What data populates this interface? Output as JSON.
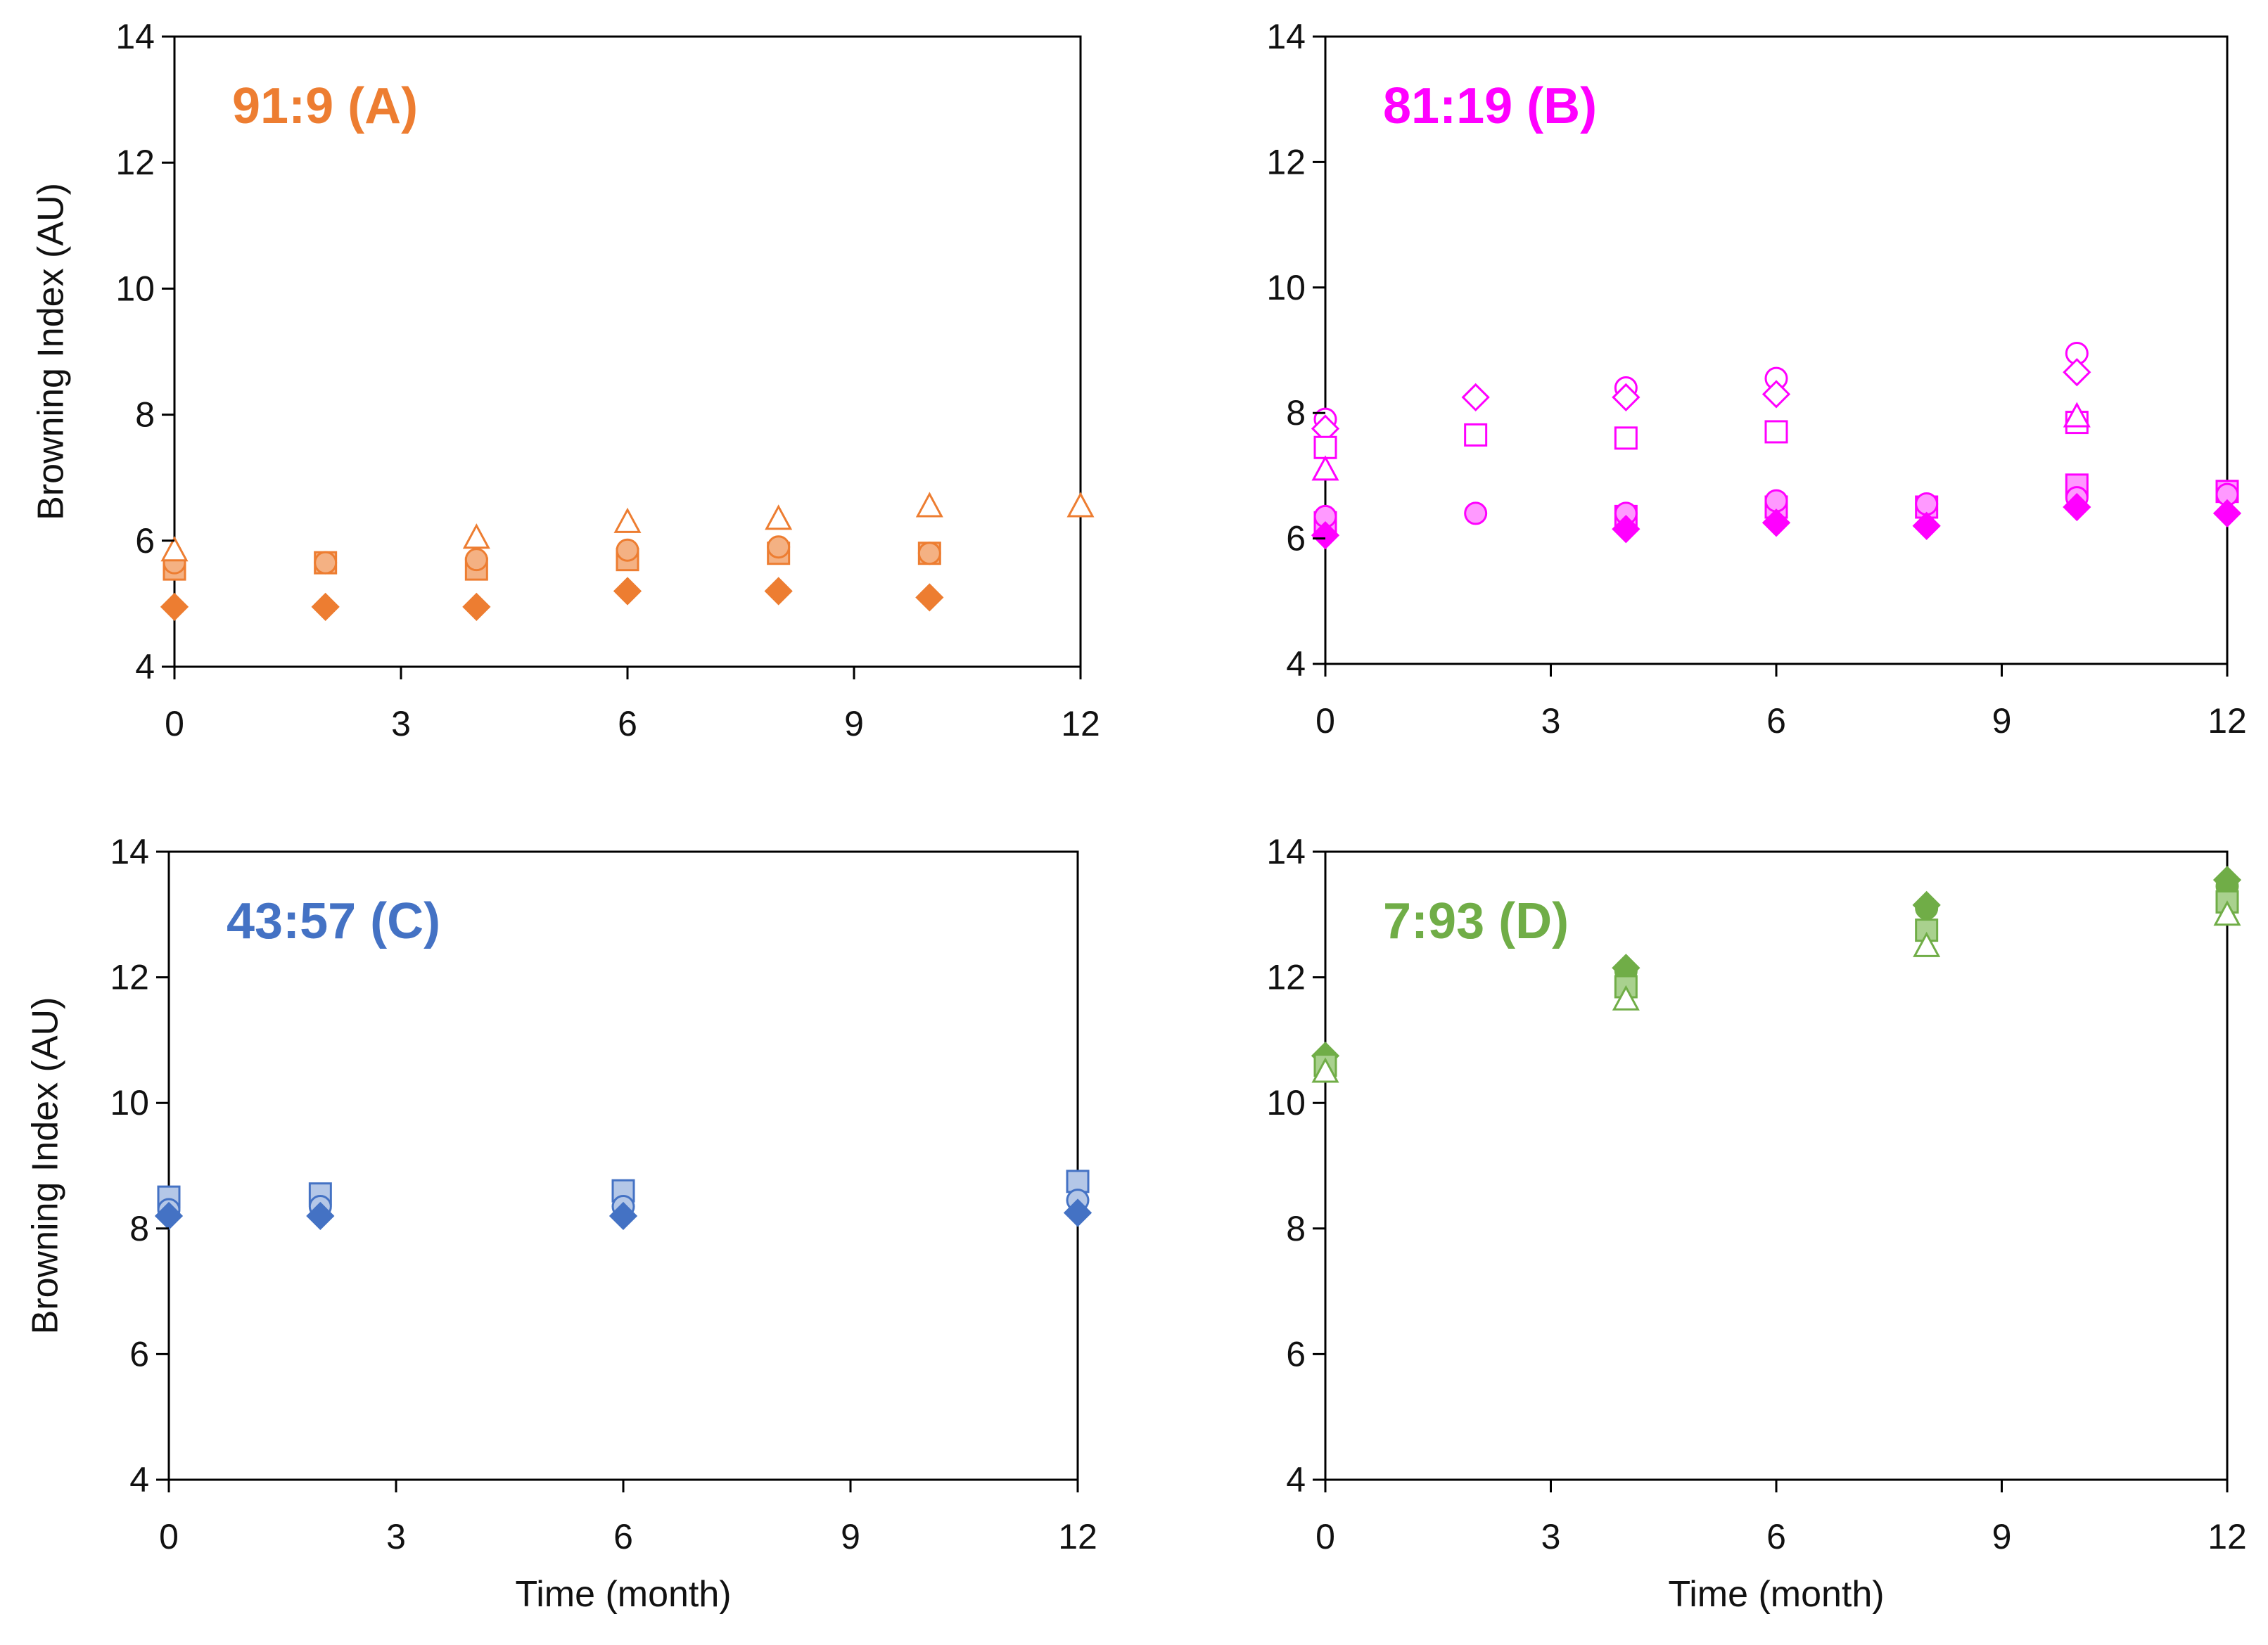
{
  "figure": {
    "xlabel": "Time (month)",
    "ylabel": "Browning Index (AU)"
  },
  "chart_data": [
    {
      "type": "scatter",
      "title": "91:9 (A)",
      "color": "#ED7D31",
      "light_color": "#F4B183",
      "xlim": [
        0,
        12
      ],
      "ylim": [
        4,
        14
      ],
      "xticks": [
        "0",
        "3",
        "6",
        "9",
        "12"
      ],
      "yticks": [
        "4",
        "6",
        "8",
        "10",
        "12",
        "14"
      ],
      "xlabel": "",
      "ylabel": "Browning Index (AU)",
      "series": [
        {
          "marker": "diamond",
          "fill": "solid",
          "x": [
            0,
            2,
            4,
            6,
            8,
            10
          ],
          "y": [
            4.95,
            4.95,
            4.95,
            5.2,
            5.2,
            5.1
          ]
        },
        {
          "marker": "square",
          "fill": "light",
          "x": [
            0,
            2,
            4,
            6,
            8,
            10
          ],
          "y": [
            5.55,
            5.65,
            5.55,
            5.7,
            5.8,
            5.8
          ]
        },
        {
          "marker": "circle",
          "fill": "light",
          "x": [
            0,
            2,
            4,
            6,
            8,
            10
          ],
          "y": [
            5.65,
            5.65,
            5.7,
            5.85,
            5.9,
            5.8
          ]
        },
        {
          "marker": "triangle",
          "fill": "open",
          "x": [
            0,
            4,
            6,
            8,
            10,
            12
          ],
          "y": [
            5.85,
            6.05,
            6.3,
            6.35,
            6.55,
            6.55
          ]
        }
      ]
    },
    {
      "type": "scatter",
      "title": "81:19 (B)",
      "color": "#FF00FF",
      "light_color": "#FF99FF",
      "xlim": [
        0,
        12
      ],
      "ylim": [
        4,
        14
      ],
      "xticks": [
        "0",
        "3",
        "6",
        "9",
        "12"
      ],
      "yticks": [
        "4",
        "6",
        "8",
        "10",
        "12",
        "14"
      ],
      "xlabel": "",
      "ylabel": "",
      "series": [
        {
          "marker": "circle",
          "fill": "open",
          "x": [
            0,
            4,
            6,
            10
          ],
          "y": [
            7.9,
            8.4,
            8.55,
            8.95
          ]
        },
        {
          "marker": "diamond",
          "fill": "open",
          "x": [
            0,
            2,
            4,
            6,
            10
          ],
          "y": [
            7.75,
            8.25,
            8.25,
            8.3,
            8.65
          ]
        },
        {
          "marker": "square",
          "fill": "open",
          "x": [
            0,
            2,
            4,
            6,
            10
          ],
          "y": [
            7.45,
            7.65,
            7.6,
            7.7,
            7.85
          ]
        },
        {
          "marker": "triangle",
          "fill": "open",
          "x": [
            0,
            10
          ],
          "y": [
            7.1,
            7.95
          ]
        },
        {
          "marker": "square",
          "fill": "light",
          "x": [
            0,
            4,
            6,
            8,
            10,
            12
          ],
          "y": [
            6.25,
            6.35,
            6.5,
            6.5,
            6.85,
            6.75
          ]
        },
        {
          "marker": "circle",
          "fill": "light",
          "x": [
            0,
            2,
            4,
            6,
            8,
            10,
            12
          ],
          "y": [
            6.35,
            6.4,
            6.4,
            6.6,
            6.55,
            6.65,
            6.7
          ]
        },
        {
          "marker": "diamond",
          "fill": "solid",
          "x": [
            0,
            4,
            6,
            8,
            10,
            12
          ],
          "y": [
            6.05,
            6.15,
            6.25,
            6.2,
            6.5,
            6.4
          ]
        }
      ]
    },
    {
      "type": "scatter",
      "title": "43:57 (C)",
      "color": "#4472C4",
      "light_color": "#B4C7E7",
      "xlim": [
        0,
        12
      ],
      "ylim": [
        4,
        14
      ],
      "xticks": [
        "0",
        "3",
        "6",
        "9",
        "12"
      ],
      "yticks": [
        "4",
        "6",
        "8",
        "10",
        "12",
        "14"
      ],
      "xlabel": "Time (month)",
      "ylabel": "Browning Index (AU)",
      "series": [
        {
          "marker": "square",
          "fill": "light",
          "x": [
            0,
            2,
            6,
            12
          ],
          "y": [
            8.5,
            8.55,
            8.6,
            8.75
          ]
        },
        {
          "marker": "circle",
          "fill": "light",
          "x": [
            0,
            2,
            6,
            12
          ],
          "y": [
            8.3,
            8.35,
            8.35,
            8.45
          ]
        },
        {
          "marker": "diamond",
          "fill": "solid",
          "x": [
            0,
            2,
            6,
            12
          ],
          "y": [
            8.2,
            8.2,
            8.2,
            8.25
          ]
        }
      ]
    },
    {
      "type": "scatter",
      "title": "7:93 (D)",
      "color": "#70AD47",
      "light_color": "#A9D18E",
      "xlim": [
        0,
        12
      ],
      "ylim": [
        4,
        14
      ],
      "xticks": [
        "0",
        "3",
        "6",
        "9",
        "12"
      ],
      "yticks": [
        "4",
        "6",
        "8",
        "10",
        "12",
        "14"
      ],
      "xlabel": "Time (month)",
      "ylabel": "",
      "series": [
        {
          "marker": "diamond",
          "fill": "solid",
          "x": [
            0,
            4,
            8,
            12
          ],
          "y": [
            10.75,
            12.15,
            13.15,
            13.55
          ]
        },
        {
          "marker": "circle",
          "fill": "solid",
          "x": [
            0,
            4,
            8,
            12
          ],
          "y": [
            10.7,
            12.1,
            13.1,
            13.45
          ]
        },
        {
          "marker": "square",
          "fill": "light",
          "x": [
            0,
            4,
            8,
            12
          ],
          "y": [
            10.6,
            11.85,
            12.75,
            13.2
          ]
        },
        {
          "marker": "triangle",
          "fill": "open",
          "x": [
            0,
            4,
            8,
            12
          ],
          "y": [
            10.5,
            11.65,
            12.5,
            13.0
          ]
        }
      ]
    }
  ]
}
